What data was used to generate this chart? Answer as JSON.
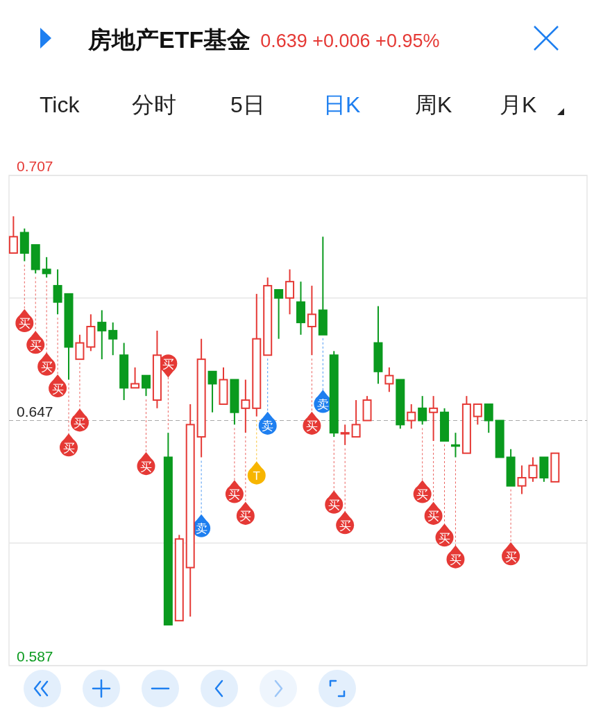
{
  "chart_data": {
    "type": "candlestick",
    "title": "房地产ETF基金",
    "subtitle": "0.639 +0.006 +0.95%",
    "categories": [
      null,
      null,
      null,
      null,
      null,
      null,
      null,
      null,
      null,
      null,
      null,
      null,
      null,
      null,
      null,
      null,
      null,
      null,
      null,
      null,
      null,
      null,
      null,
      null,
      null,
      null,
      null,
      null,
      null,
      null,
      null,
      null,
      null,
      null,
      null,
      null,
      null,
      null,
      null,
      null,
      null,
      null,
      null,
      null,
      null,
      null,
      null,
      null,
      null,
      null
    ],
    "ohlc": [
      [
        0.688,
        0.697,
        0.688,
        0.692
      ],
      [
        0.693,
        0.694,
        0.686,
        0.688
      ],
      [
        0.69,
        0.69,
        0.683,
        0.684
      ],
      [
        0.684,
        0.687,
        0.682,
        0.683
      ],
      [
        0.68,
        0.684,
        0.673,
        0.676
      ],
      [
        0.678,
        0.678,
        0.657,
        0.665
      ],
      [
        0.662,
        0.668,
        0.662,
        0.666
      ],
      [
        0.665,
        0.673,
        0.664,
        0.67
      ],
      [
        0.671,
        0.674,
        0.662,
        0.669
      ],
      [
        0.669,
        0.671,
        0.663,
        0.667
      ],
      [
        0.663,
        0.666,
        0.652,
        0.655
      ],
      [
        0.655,
        0.66,
        0.655,
        0.656
      ],
      [
        0.658,
        0.658,
        0.653,
        0.655
      ],
      [
        0.652,
        0.669,
        0.65,
        0.663
      ],
      [
        0.638,
        0.644,
        0.597,
        0.597
      ],
      [
        0.598,
        0.619,
        0.598,
        0.618
      ],
      [
        0.611,
        0.651,
        0.599,
        0.646
      ],
      [
        0.643,
        0.667,
        0.638,
        0.662
      ],
      [
        0.659,
        0.659,
        0.649,
        0.656
      ],
      [
        0.651,
        0.66,
        0.651,
        0.657
      ],
      [
        0.657,
        0.657,
        0.646,
        0.649
      ],
      [
        0.65,
        0.657,
        0.644,
        0.652
      ],
      [
        0.65,
        0.678,
        0.648,
        0.667
      ],
      [
        0.663,
        0.682,
        0.663,
        0.68
      ],
      [
        0.679,
        0.679,
        0.667,
        0.677
      ],
      [
        0.677,
        0.684,
        0.673,
        0.681
      ],
      [
        0.676,
        0.681,
        0.668,
        0.671
      ],
      [
        0.67,
        0.68,
        0.663,
        0.673
      ],
      [
        0.674,
        0.692,
        0.668,
        0.668
      ],
      [
        0.663,
        0.664,
        0.643,
        0.644
      ],
      [
        0.644,
        0.646,
        0.641,
        0.644
      ],
      [
        0.643,
        0.652,
        0.643,
        0.646
      ],
      [
        0.647,
        0.653,
        0.647,
        0.652
      ],
      [
        0.666,
        0.675,
        0.656,
        0.659
      ],
      [
        0.656,
        0.66,
        0.654,
        0.658
      ],
      [
        0.657,
        0.657,
        0.645,
        0.646
      ],
      [
        0.647,
        0.651,
        0.645,
        0.649
      ],
      [
        0.65,
        0.653,
        0.646,
        0.647
      ],
      [
        0.649,
        0.653,
        0.642,
        0.65
      ],
      [
        0.649,
        0.65,
        0.642,
        0.642
      ],
      [
        0.641,
        0.644,
        0.638,
        0.641
      ],
      [
        0.639,
        0.653,
        0.639,
        0.651
      ],
      [
        0.648,
        0.651,
        0.646,
        0.651
      ],
      [
        0.651,
        0.651,
        0.644,
        0.647
      ],
      [
        0.647,
        0.647,
        0.638,
        0.638
      ],
      [
        0.638,
        0.64,
        0.631,
        0.631
      ],
      [
        0.631,
        0.636,
        0.629,
        0.633
      ],
      [
        0.633,
        0.638,
        0.632,
        0.636
      ],
      [
        0.638,
        0.638,
        0.632,
        0.633
      ],
      [
        0.632,
        0.639,
        0.632,
        0.639
      ]
    ],
    "colors": [
      "#e53935",
      "#0a9a1e",
      "#0a9a1e",
      "#0a9a1e",
      "#0a9a1e",
      "#0a9a1e",
      "#e53935",
      "#e53935",
      "#0a9a1e",
      "#0a9a1e",
      "#0a9a1e",
      "#e53935",
      "#0a9a1e",
      "#e53935",
      "#0a9a1e",
      "#e53935",
      "#e53935",
      "#e53935",
      "#0a9a1e",
      "#e53935",
      "#0a9a1e",
      "#e53935",
      "#e53935",
      "#e53935",
      "#0a9a1e",
      "#e53935",
      "#0a9a1e",
      "#e53935",
      "#0a9a1e",
      "#0a9a1e",
      "#e53935",
      "#e53935",
      "#e53935",
      "#0a9a1e",
      "#e53935",
      "#0a9a1e",
      "#e53935",
      "#0a9a1e",
      "#e53935",
      "#0a9a1e",
      "#0a9a1e",
      "#e53935",
      "#e53935",
      "#0a9a1e",
      "#0a9a1e",
      "#0a9a1e",
      "#e53935",
      "#e53935",
      "#0a9a1e",
      "#e53935"
    ],
    "ylim": [
      0.587,
      0.707
    ],
    "yticks": [
      0.707,
      {
        "value": 0.677,
        "label": null
      },
      0.647,
      {
        "value": 0.617,
        "label": null
      },
      0.587
    ],
    "tick_labels": "y",
    "grid": "y",
    "ref_lines": [
      {
        "axis": "y",
        "value": 0.647,
        "color": "#aaaaaa",
        "line_style": "dashed"
      }
    ],
    "annotations": [
      "Tick",
      "分时",
      "5日",
      "日K",
      "周K",
      "月K",
      "买",
      "买",
      "买",
      "买",
      "买",
      "买",
      "买",
      "买",
      "卖",
      "买",
      "买",
      "T",
      "卖",
      "买",
      "卖",
      "买",
      "买",
      "买",
      "买",
      "买",
      "买",
      "买"
    ]
  }
}
